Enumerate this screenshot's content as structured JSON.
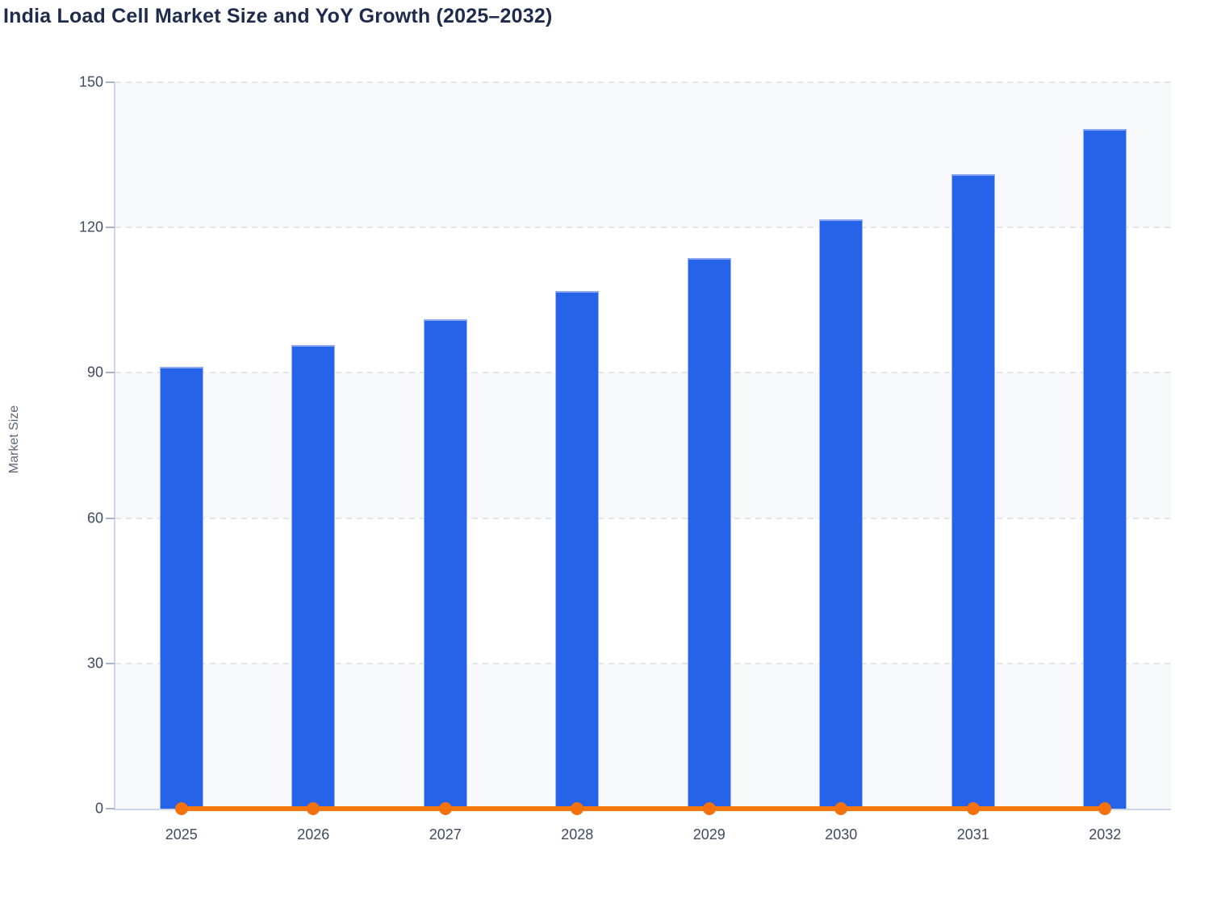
{
  "title": "India Load Cell Market Size and YoY Growth (2025–2032)",
  "y_axis_title": "Market Size",
  "colors": {
    "bar_fill": "#2563e8",
    "bar_border": "#8da8f0",
    "line_orange": "#f7770f",
    "title_text": "#1e2b4d",
    "tick_text": "#3f4b61",
    "axis_line": "#ccd4ee",
    "gridline": "#e3e5ea",
    "band_fill": "#f7f8fa",
    "band_fill_alt": "#ffffff"
  },
  "chart_data": {
    "type": "bar",
    "title": "India Load Cell Market Size and YoY Growth (2025–2032)",
    "xlabel": "",
    "ylabel": "Market Size",
    "categories": [
      "2025",
      "2026",
      "2027",
      "2028",
      "2029",
      "2030",
      "2031",
      "2032"
    ],
    "series": [
      {
        "name": "Market Size",
        "type": "bar",
        "color": "#2563e8",
        "values": [
          91.2,
          95.8,
          101.0,
          106.9,
          113.7,
          121.7,
          131.0,
          140.3
        ]
      },
      {
        "name": "YoY Growth",
        "type": "line",
        "color": "#f7770f",
        "values": [
          0,
          0,
          0,
          0,
          0,
          0,
          0,
          0
        ]
      }
    ],
    "ylim": [
      0,
      150
    ],
    "y_ticks": [
      0,
      30,
      60,
      90,
      120,
      150
    ],
    "grid": "horizontal-dashed",
    "legend_position": "none",
    "plot_background": "alternating horizontal bands #f7f8fa / #ffffff"
  }
}
